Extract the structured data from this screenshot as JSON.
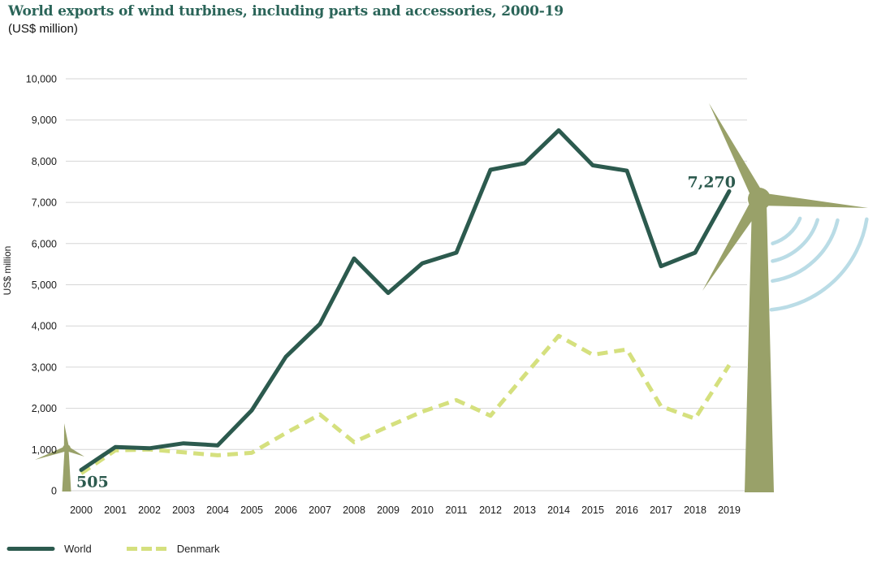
{
  "header": {
    "title": "World exports of wind turbines, including parts and accessories, 2000-19",
    "subtitle": "(US$ million)",
    "title_color": "#2a6458"
  },
  "chart_data": {
    "type": "line",
    "title": "World exports of wind turbines, including parts and accessories, 2000-19",
    "subtitle": "(US$ million)",
    "xlabel": "",
    "ylabel": "US$ million",
    "ylim": [
      0,
      10000
    ],
    "ytick_values": [
      0,
      1000,
      2000,
      3000,
      4000,
      5000,
      6000,
      7000,
      8000,
      9000,
      10000
    ],
    "ytick_labels": [
      "0",
      "1,000",
      "2,000",
      "3,000",
      "4,000",
      "5,000",
      "6,000",
      "7,000",
      "8,000",
      "9,000",
      "10,000"
    ],
    "categories": [
      "2000",
      "2001",
      "2002",
      "2003",
      "2004",
      "2005",
      "2006",
      "2007",
      "2008",
      "2009",
      "2010",
      "2011",
      "2012",
      "2013",
      "2014",
      "2015",
      "2016",
      "2017",
      "2018",
      "2019"
    ],
    "series": [
      {
        "name": "World",
        "style": "solid",
        "color": "#2c5a4e",
        "values": [
          505,
          1060,
          1030,
          1150,
          1100,
          1950,
          3250,
          4050,
          5640,
          4800,
          5520,
          5780,
          7790,
          7950,
          8750,
          7900,
          7770,
          5450,
          5780,
          7270
        ]
      },
      {
        "name": "Denmark",
        "style": "dashed",
        "color": "#d5e07e",
        "values": [
          420,
          980,
          1000,
          930,
          860,
          920,
          1400,
          1850,
          1180,
          1560,
          1920,
          2200,
          1820,
          2800,
          3760,
          3300,
          3430,
          2050,
          1750,
          3050
        ]
      }
    ],
    "annotations": [
      {
        "text": "505",
        "series": "World",
        "year": "2000",
        "value": 505,
        "placement": "below-start"
      },
      {
        "text": "7,270",
        "series": "World",
        "year": "2019",
        "value": 7270,
        "placement": "above-end"
      }
    ],
    "grid": "horizontal",
    "grid_color": "#d6d6d6",
    "legend_position": "bottom-left"
  },
  "legend": {
    "world_label": "World",
    "denmark_label": "Denmark"
  },
  "decorations": {
    "small_turbine_icon": "wind-turbine",
    "large_turbine_icon": "wind-turbine",
    "turbine_color": "#99a169",
    "wind_arcs_color": "#badce6"
  }
}
